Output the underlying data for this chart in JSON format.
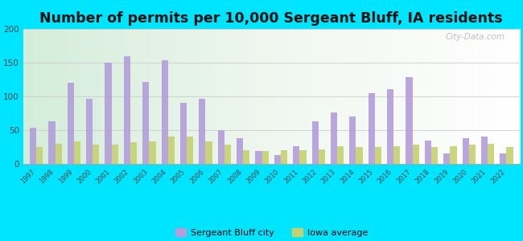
{
  "title": "Number of permits per 10,000 Sergeant Bluff, IA residents",
  "years": [
    1997,
    1998,
    1999,
    2000,
    2001,
    2002,
    2003,
    2004,
    2005,
    2006,
    2007,
    2008,
    2009,
    2010,
    2011,
    2012,
    2013,
    2014,
    2015,
    2016,
    2017,
    2018,
    2019,
    2020,
    2021,
    2022
  ],
  "city_values": [
    54,
    63,
    120,
    96,
    150,
    160,
    122,
    154,
    91,
    96,
    50,
    38,
    19,
    13,
    26,
    63,
    76,
    70,
    105,
    111,
    129,
    35,
    16,
    38,
    40,
    16
  ],
  "iowa_values": [
    25,
    30,
    33,
    28,
    29,
    32,
    33,
    40,
    40,
    33,
    28,
    20,
    19,
    20,
    20,
    22,
    26,
    25,
    25,
    26,
    29,
    25,
    26,
    28,
    30,
    25
  ],
  "city_color": "#b39ddb",
  "iowa_color": "#c5d16e",
  "background_outer": "#00e5ff",
  "ylim": [
    0,
    200
  ],
  "yticks": [
    0,
    50,
    100,
    150,
    200
  ],
  "legend_city": "Sergeant Bluff city",
  "legend_iowa": "Iowa average",
  "title_fontsize": 12.5,
  "watermark": "City-Data.com"
}
